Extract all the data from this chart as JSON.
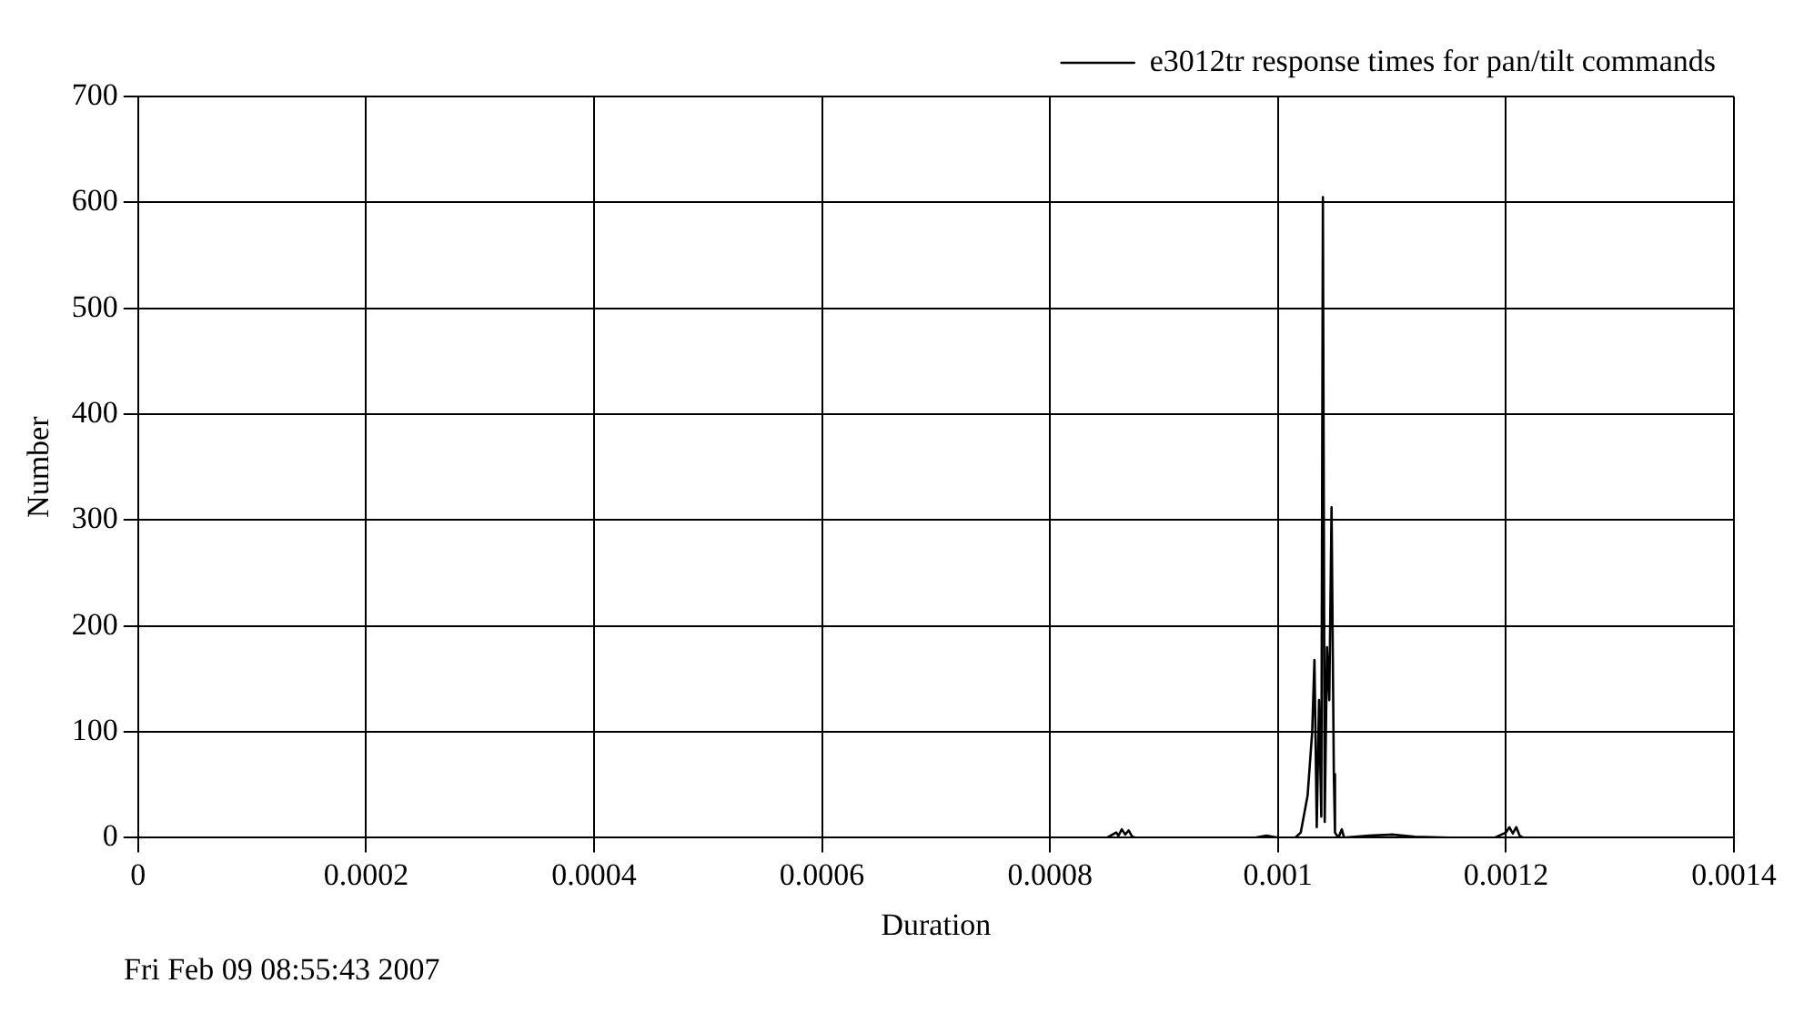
{
  "chart_data": {
    "type": "line",
    "xlabel": "Duration",
    "ylabel": "Number",
    "annotations": [
      "Fri Feb 09 08:55:43 2007"
    ],
    "xlim": [
      0,
      0.0014
    ],
    "xticks": [
      0,
      0.0002,
      0.0004,
      0.0006,
      0.0008,
      0.001,
      0.0012,
      0.0014
    ],
    "ylim": [
      0,
      700
    ],
    "yticks": [
      0,
      100,
      200,
      300,
      400,
      500,
      600,
      700
    ],
    "grid": true,
    "legend": "top right",
    "marker": "none",
    "line_style": "solid",
    "series": [
      {
        "name": "e3012tr response times for pan/tilt commands",
        "color": "#000000",
        "x": [
          0,
          0.00085,
          0.000858,
          0.00086,
          0.000863,
          0.000866,
          0.000869,
          0.000872,
          0.000876,
          0.00098,
          0.00099,
          0.000995,
          0.001,
          0.001015,
          0.00102,
          0.001026,
          0.00103,
          0.001032,
          0.001034,
          0.001036,
          0.001038,
          0.0010394,
          0.001041,
          0.001043,
          0.001045,
          0.001047,
          0.001049,
          0.00105,
          0.001053,
          0.001056,
          0.001058,
          0.00108,
          0.0011,
          0.00112,
          0.00115,
          0.00119,
          0.0012,
          0.001203,
          0.001206,
          0.001209,
          0.001212,
          0.001215,
          0.00122
        ],
        "values": [
          0,
          0,
          5,
          2,
          8,
          3,
          7,
          1,
          0,
          0,
          2,
          1,
          0,
          0,
          5,
          40,
          100,
          168,
          10,
          130,
          20,
          605,
          15,
          180,
          130,
          312,
          60,
          5,
          0,
          8,
          0,
          2,
          3,
          1,
          0,
          0,
          5,
          10,
          4,
          10,
          2,
          0,
          0
        ]
      }
    ]
  }
}
